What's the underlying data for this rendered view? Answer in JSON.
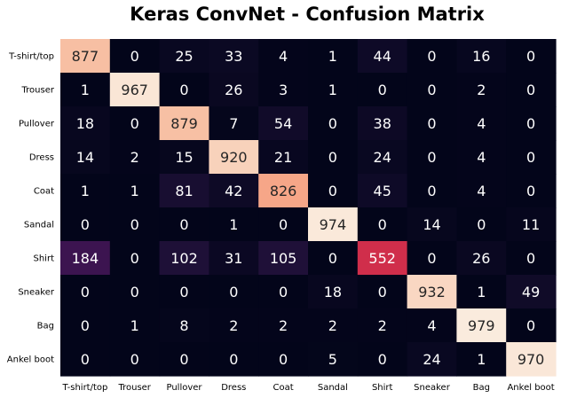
{
  "chart_data": {
    "type": "heatmap",
    "title": "Keras ConvNet - Confusion Matrix",
    "xlabel": "",
    "ylabel": "",
    "x_categories": [
      "T-shirt/top",
      "Trouser",
      "Pullover",
      "Dress",
      "Coat",
      "Sandal",
      "Shirt",
      "Sneaker",
      "Bag",
      "Ankel boot"
    ],
    "y_categories": [
      "T-shirt/top",
      "Trouser",
      "Pullover",
      "Dress",
      "Coat",
      "Sandal",
      "Shirt",
      "Sneaker",
      "Bag",
      "Ankel boot"
    ],
    "values": [
      [
        877,
        0,
        25,
        33,
        4,
        1,
        44,
        0,
        16,
        0
      ],
      [
        1,
        967,
        0,
        26,
        3,
        1,
        0,
        0,
        2,
        0
      ],
      [
        18,
        0,
        879,
        7,
        54,
        0,
        38,
        0,
        4,
        0
      ],
      [
        14,
        2,
        15,
        920,
        21,
        0,
        24,
        0,
        4,
        0
      ],
      [
        1,
        1,
        81,
        42,
        826,
        0,
        45,
        0,
        4,
        0
      ],
      [
        0,
        0,
        0,
        1,
        0,
        974,
        0,
        14,
        0,
        11
      ],
      [
        184,
        0,
        102,
        31,
        105,
        0,
        552,
        0,
        26,
        0
      ],
      [
        0,
        0,
        0,
        0,
        0,
        18,
        0,
        932,
        1,
        49
      ],
      [
        0,
        1,
        8,
        2,
        2,
        2,
        2,
        4,
        979,
        0
      ],
      [
        0,
        0,
        0,
        0,
        0,
        5,
        0,
        24,
        1,
        970
      ]
    ],
    "value_range": [
      0,
      979
    ],
    "colormap": "rocket",
    "annotations": true,
    "colorbar": false,
    "grid": false
  }
}
